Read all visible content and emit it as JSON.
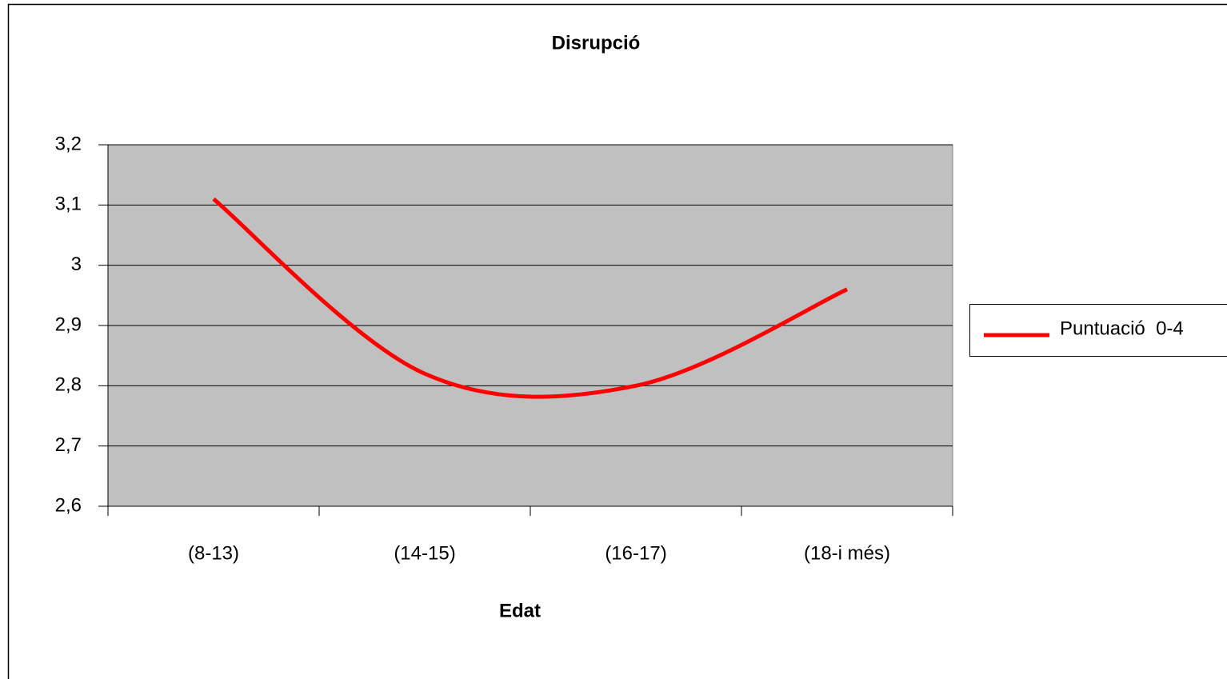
{
  "chart_data": {
    "type": "line",
    "title": "Disrupció",
    "x_label": "Edat",
    "categories": [
      "(8-13)",
      "(14-15)",
      "(16-17)",
      "(18-i més)"
    ],
    "series": [
      {
        "name": "Puntuació  0-4",
        "color": "#ff0000",
        "values": [
          3.11,
          2.82,
          2.8,
          2.96
        ]
      }
    ],
    "ylim": [
      2.6,
      3.2
    ],
    "yticks": [
      {
        "value": 2.6,
        "label": "2,6"
      },
      {
        "value": 2.7,
        "label": "2,7"
      },
      {
        "value": 2.8,
        "label": "2,8"
      },
      {
        "value": 2.9,
        "label": "2,9"
      },
      3,
      {
        "value": 3.1,
        "label": "3,1"
      },
      {
        "value": 3.2,
        "label": "3,2"
      }
    ],
    "grid": true,
    "smooth": true,
    "legend": "right",
    "plot_background": "#c0c0c0"
  }
}
